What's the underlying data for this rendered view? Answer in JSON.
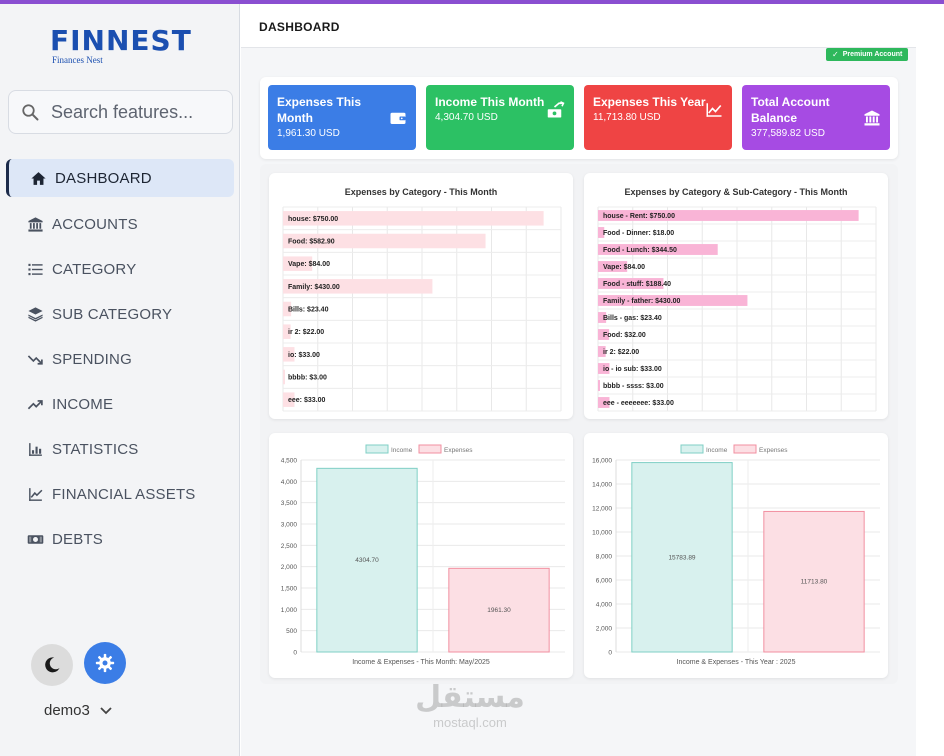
{
  "app": {
    "logo_text": "FINNEST",
    "logo_subtitle": "Finances Nest"
  },
  "search": {
    "placeholder": "Search features..."
  },
  "nav": [
    {
      "label": "DASHBOARD",
      "icon": "home-icon",
      "active": true
    },
    {
      "label": "ACCOUNTS",
      "icon": "bank-icon"
    },
    {
      "label": "CATEGORY",
      "icon": "list-icon"
    },
    {
      "label": "SUB CATEGORY",
      "icon": "layers-icon"
    },
    {
      "label": "SPENDING",
      "icon": "trend-down-icon"
    },
    {
      "label": "INCOME",
      "icon": "trend-up-icon"
    },
    {
      "label": "STATISTICS",
      "icon": "bar-stats-icon"
    },
    {
      "label": "FINANCIAL ASSETS",
      "icon": "line-chart-icon"
    },
    {
      "label": "DEBTS",
      "icon": "money-icon"
    }
  ],
  "user": {
    "name": "demo3"
  },
  "header": {
    "title": "DASHBOARD",
    "badge": "Premium Account"
  },
  "cards": [
    {
      "label": "Expenses This Month",
      "value": "1,961.30 USD",
      "color": "#3b7de6",
      "icon": "wallet-icon"
    },
    {
      "label": "Income This Month",
      "value": "4,304.70 USD",
      "color": "#2cc164",
      "icon": "money-up-icon"
    },
    {
      "label": "Expenses This Year",
      "value": "11,713.80 USD",
      "color": "#ef4444",
      "icon": "chart-line-icon"
    },
    {
      "label": "Total Account Balance",
      "value": "377,589.82 USD",
      "color": "#a64be3",
      "icon": "bank-icon"
    }
  ],
  "chart_data": [
    {
      "type": "bar",
      "orientation": "horizontal",
      "title": "Expenses by Category - This Month",
      "categories": [
        "house: $750.00",
        "Food: $582.90",
        "Vape: $84.00",
        "Family: $430.00",
        "Bills: $23.40",
        "ir 2: $22.00",
        "io: $33.00",
        "bbbb: $3.00",
        "eee: $33.00"
      ],
      "values": [
        750,
        582.9,
        84,
        430,
        23.4,
        22,
        33,
        3,
        33
      ],
      "color": "#fde0e4",
      "xlim": [
        0,
        800
      ]
    },
    {
      "type": "bar",
      "orientation": "horizontal",
      "title": "Expenses by Category & Sub-Category - This Month",
      "categories": [
        "house - Rent: $750.00",
        "Food - Dinner: $18.00",
        "Food - Lunch: $344.50",
        "Vape: $84.00",
        "Food - stuff: $188.40",
        "Family - father: $430.00",
        "Bills - gas: $23.40",
        "Food: $32.00",
        "ir 2: $22.00",
        "io - io sub: $33.00",
        "bbbb - ssss: $3.00",
        "eee - eeeeeee: $33.00"
      ],
      "values": [
        750,
        18,
        344.5,
        84,
        188.4,
        430,
        23.4,
        32,
        22,
        33,
        3,
        33
      ],
      "color": "#f9b4d6",
      "xlim": [
        0,
        800
      ]
    },
    {
      "type": "bar",
      "legend": [
        "Income",
        "Expenses"
      ],
      "xlabel": "Income & Expenses - This Month: May/2025",
      "values": [
        4304.7,
        1961.3
      ],
      "labels": [
        "4304.70",
        "1961.30"
      ],
      "ylim": [
        0,
        4500
      ],
      "yticks": [
        "0",
        "500",
        "1,000",
        "1,500",
        "2,000",
        "2,500",
        "3,000",
        "3,500",
        "4,000",
        "4,500"
      ],
      "colors": [
        "#d8f1ee",
        "#fcdfe4"
      ],
      "borders": [
        "#7fcfc5",
        "#f28fa0"
      ]
    },
    {
      "type": "bar",
      "legend": [
        "Income",
        "Expenses"
      ],
      "xlabel": "Income & Expenses - This Year : 2025",
      "values": [
        15783.89,
        11713.8
      ],
      "labels": [
        "15783.89",
        "11713.80"
      ],
      "ylim": [
        0,
        16000
      ],
      "yticks": [
        "0",
        "2,000",
        "4,000",
        "6,000",
        "8,000",
        "10,000",
        "12,000",
        "14,000",
        "16,000"
      ],
      "colors": [
        "#d8f1ee",
        "#fcdfe4"
      ],
      "borders": [
        "#7fcfc5",
        "#f28fa0"
      ]
    }
  ],
  "watermark": {
    "arabic": "مستقل",
    "latin": "mostaql.com"
  }
}
